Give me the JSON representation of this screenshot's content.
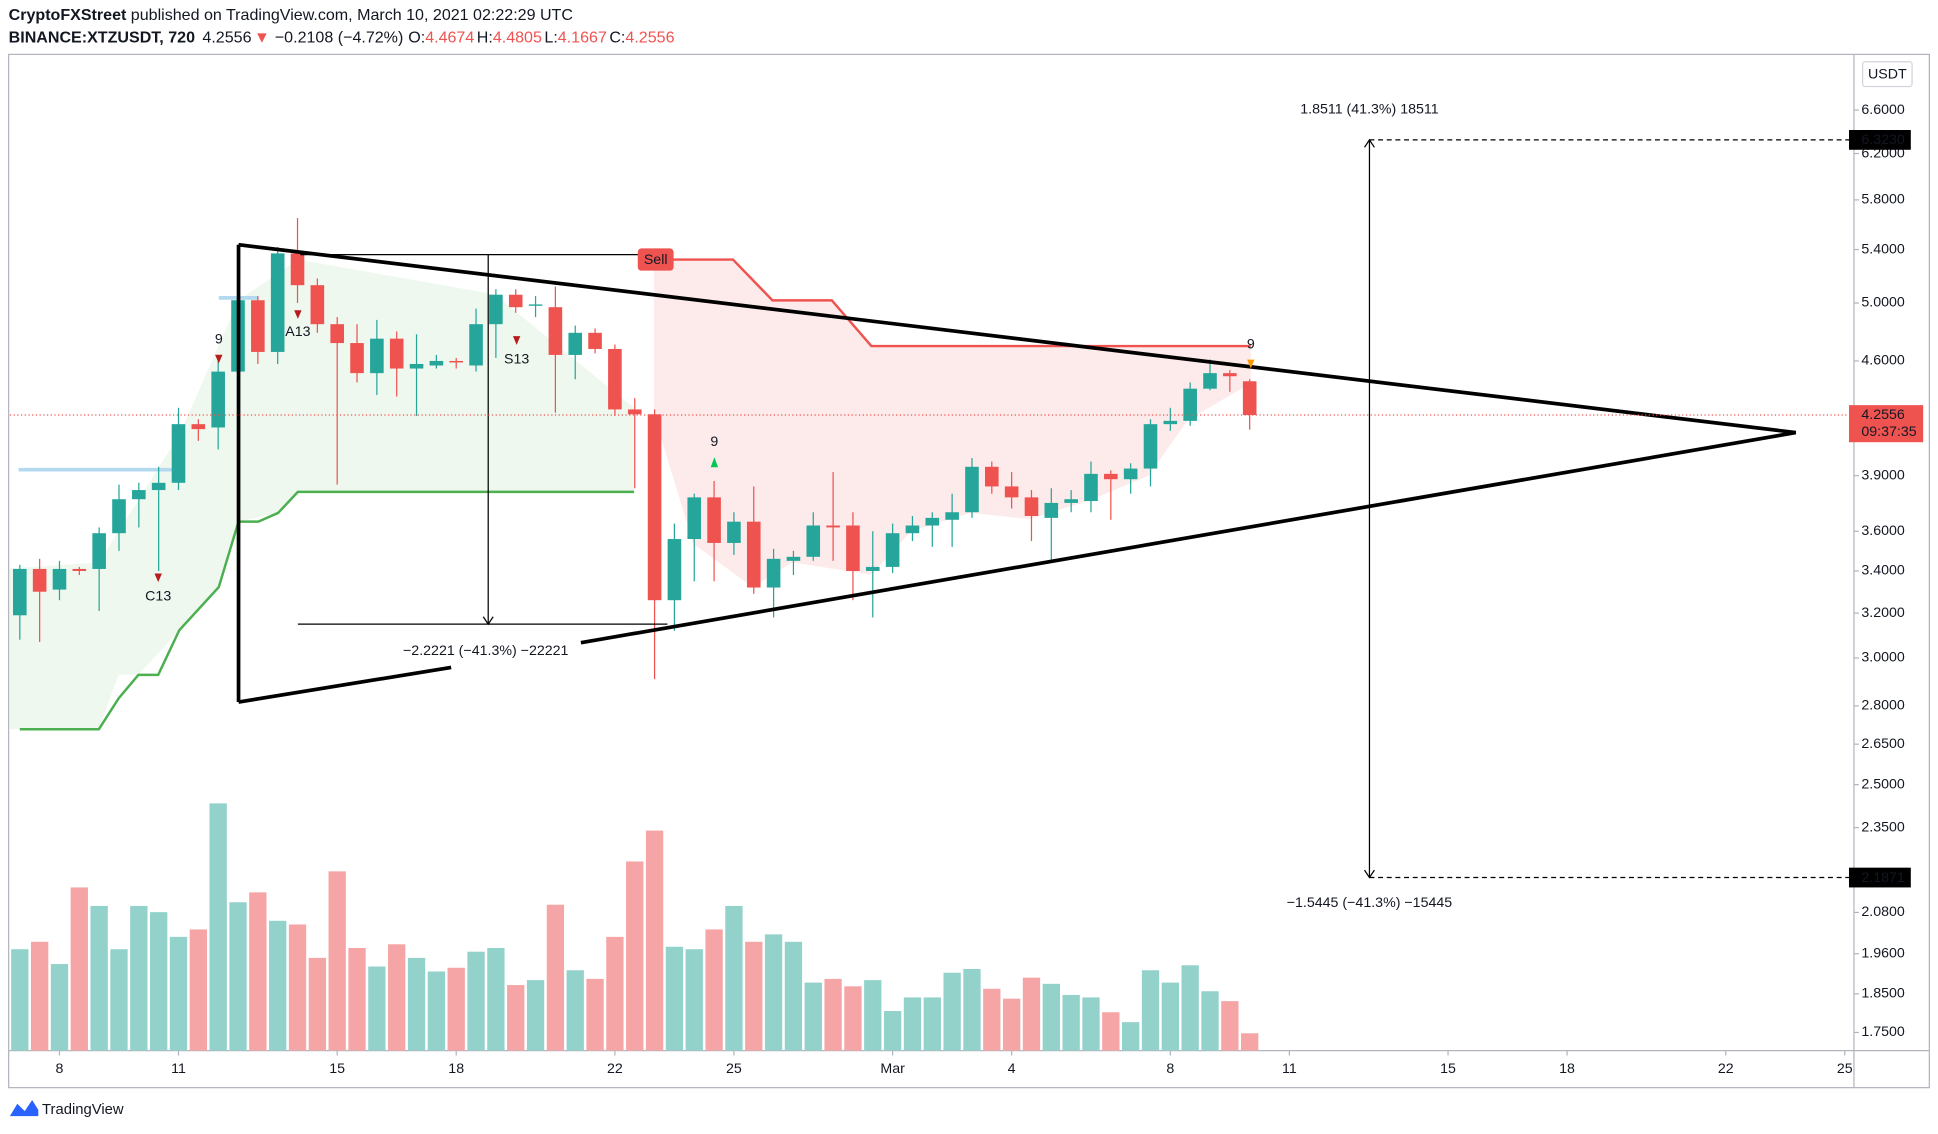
{
  "header": {
    "publisher": "CryptoFXStreet",
    "published": " published on TradingView.com, March 10, 2021 02:22:29 UTC",
    "symbol": "BINANCE:XTZUSDT, 720",
    "last": "4.2556",
    "change_arrow": "▼",
    "change": "−0.2108 (−4.72%)",
    "ohlc": [
      {
        "key": "O:",
        "val": "4.4674"
      },
      {
        "key": "H:",
        "val": "4.4805"
      },
      {
        "key": "L:",
        "val": "4.1667"
      },
      {
        "key": "C:",
        "val": "4.2556"
      }
    ]
  },
  "footer": "TradingView",
  "chart_data": {
    "type": "candlestick",
    "currency": "USDT",
    "log_scale": true,
    "xlim": [
      "2021-02-06T18:00",
      "2021-03-25T06:00"
    ],
    "ylim": [
      1.705,
      7.05
    ],
    "volume_ylim": [
      0,
      250
    ],
    "up_color": "#26a69a",
    "down_color": "#ef5350",
    "up_volume_color": "#93d1cb",
    "down_volume_color": "#f5a5a5",
    "xticks": [
      {
        "value": "2021-02-08T00:00",
        "label": "8"
      },
      {
        "value": "2021-02-11T00:00",
        "label": "11"
      },
      {
        "value": "2021-02-15T00:00",
        "label": "15"
      },
      {
        "value": "2021-02-18T00:00",
        "label": "18"
      },
      {
        "value": "2021-02-22T00:00",
        "label": "22"
      },
      {
        "value": "2021-02-25T00:00",
        "label": "25"
      },
      {
        "value": "2021-03-01T00:00",
        "label": "Mar"
      },
      {
        "value": "2021-03-04T00:00",
        "label": "4"
      },
      {
        "value": "2021-03-08T00:00",
        "label": "8"
      },
      {
        "value": "2021-03-11T00:00",
        "label": "11"
      },
      {
        "value": "2021-03-15T00:00",
        "label": "15"
      },
      {
        "value": "2021-03-18T00:00",
        "label": "18"
      },
      {
        "value": "2021-03-22T00:00",
        "label": "22"
      },
      {
        "value": "2021-03-25T00:00",
        "label": "25"
      }
    ],
    "yticks": [
      {
        "value": 6.6,
        "label": "6.6000"
      },
      {
        "value": 6.2,
        "label": "6.2000"
      },
      {
        "value": 5.8,
        "label": "5.8000"
      },
      {
        "value": 5.4,
        "label": "5.4000"
      },
      {
        "value": 5.0,
        "label": "5.0000"
      },
      {
        "value": 4.6,
        "label": "4.6000"
      },
      {
        "value": 3.9,
        "label": "3.9000"
      },
      {
        "value": 3.6,
        "label": "3.6000"
      },
      {
        "value": 3.4,
        "label": "3.4000"
      },
      {
        "value": 3.2,
        "label": "3.2000"
      },
      {
        "value": 3.0,
        "label": "3.0000"
      },
      {
        "value": 2.8,
        "label": "2.8000"
      },
      {
        "value": 2.65,
        "label": "2.6500"
      },
      {
        "value": 2.5,
        "label": "2.5000"
      },
      {
        "value": 2.35,
        "label": "2.3500"
      },
      {
        "value": 2.08,
        "label": "2.0800"
      },
      {
        "value": 1.96,
        "label": "1.9600"
      },
      {
        "value": 1.85,
        "label": "1.8500"
      },
      {
        "value": 1.75,
        "label": "1.7500"
      }
    ],
    "last_price": {
      "value": 4.2556,
      "label": "4.2556"
    },
    "countdown": "09:37:35",
    "levels": [
      {
        "value": 6.323,
        "label": "6.3230"
      },
      {
        "value": 2.1871,
        "label": "2.1871"
      }
    ],
    "measures": [
      "1.8511 (41.3%) 18511",
      "−1.5445 (−41.3%) −15445",
      "−2.2221 (−41.3%) −22221"
    ],
    "annotations": [
      "9",
      "A13",
      "C13",
      "S13",
      "9",
      "9",
      "Sell"
    ],
    "x": [
      "2021-02-07T00:00",
      "2021-02-07T12:00",
      "2021-02-08T00:00",
      "2021-02-08T12:00",
      "2021-02-09T00:00",
      "2021-02-09T12:00",
      "2021-02-10T00:00",
      "2021-02-10T12:00",
      "2021-02-11T00:00",
      "2021-02-11T12:00",
      "2021-02-12T00:00",
      "2021-02-12T12:00",
      "2021-02-13T00:00",
      "2021-02-13T12:00",
      "2021-02-14T00:00",
      "2021-02-14T12:00",
      "2021-02-15T00:00",
      "2021-02-15T12:00",
      "2021-02-16T00:00",
      "2021-02-16T12:00",
      "2021-02-17T00:00",
      "2021-02-17T12:00",
      "2021-02-18T00:00",
      "2021-02-18T12:00",
      "2021-02-19T00:00",
      "2021-02-19T12:00",
      "2021-02-20T00:00",
      "2021-02-20T12:00",
      "2021-02-21T00:00",
      "2021-02-21T12:00",
      "2021-02-22T00:00",
      "2021-02-22T12:00",
      "2021-02-23T00:00",
      "2021-02-23T12:00",
      "2021-02-24T00:00",
      "2021-02-24T12:00",
      "2021-02-25T00:00",
      "2021-02-25T12:00",
      "2021-02-26T00:00",
      "2021-02-26T12:00",
      "2021-02-27T00:00",
      "2021-02-27T12:00",
      "2021-02-28T00:00",
      "2021-02-28T12:00",
      "2021-03-01T00:00",
      "2021-03-01T12:00",
      "2021-03-02T00:00",
      "2021-03-02T12:00",
      "2021-03-03T00:00",
      "2021-03-03T12:00",
      "2021-03-04T00:00",
      "2021-03-04T12:00",
      "2021-03-05T00:00",
      "2021-03-05T12:00",
      "2021-03-06T00:00",
      "2021-03-06T12:00",
      "2021-03-07T00:00",
      "2021-03-07T12:00",
      "2021-03-08T00:00",
      "2021-03-08T12:00",
      "2021-03-09T00:00",
      "2021-03-09T12:00",
      "2021-03-10T00:00"
    ],
    "open": [
      3.19,
      3.41,
      3.31,
      3.41,
      3.41,
      3.59,
      3.77,
      3.82,
      3.86,
      4.2,
      4.18,
      4.53,
      5.02,
      4.66,
      5.37,
      5.13,
      4.85,
      4.72,
      4.52,
      4.75,
      4.55,
      4.57,
      4.6,
      4.57,
      4.85,
      5.06,
      4.98,
      4.97,
      4.64,
      4.79,
      4.68,
      4.29,
      4.26,
      3.26,
      3.56,
      3.78,
      3.54,
      3.65,
      3.32,
      3.45,
      3.47,
      3.63,
      3.63,
      3.4,
      3.42,
      3.59,
      3.63,
      3.66,
      3.7,
      3.95,
      3.84,
      3.78,
      3.67,
      3.75,
      3.76,
      3.91,
      3.88,
      3.94,
      4.2,
      4.22,
      4.42,
      4.52,
      4.4674
    ],
    "high": [
      3.43,
      3.46,
      3.45,
      3.42,
      3.62,
      3.85,
      3.86,
      3.95,
      4.3,
      4.23,
      4.63,
      5.07,
      5.05,
      5.42,
      5.65,
      5.18,
      4.9,
      4.85,
      4.88,
      4.8,
      4.78,
      4.64,
      4.62,
      4.96,
      5.1,
      5.1,
      5.05,
      5.12,
      4.84,
      4.82,
      4.71,
      4.36,
      4.29,
      3.64,
      3.8,
      3.87,
      3.7,
      3.84,
      3.51,
      3.5,
      3.7,
      3.92,
      3.7,
      3.6,
      3.64,
      3.68,
      3.7,
      3.8,
      4.0,
      3.98,
      3.92,
      3.82,
      3.83,
      3.82,
      3.98,
      3.93,
      3.97,
      4.23,
      4.3,
      4.46,
      4.61,
      4.54,
      4.4805
    ],
    "low": [
      3.08,
      3.07,
      3.26,
      3.38,
      3.21,
      3.5,
      3.62,
      3.4,
      3.82,
      4.1,
      4.05,
      4.46,
      4.58,
      4.58,
      5.0,
      4.79,
      3.85,
      4.46,
      4.38,
      4.37,
      4.25,
      4.55,
      4.55,
      4.53,
      4.62,
      4.93,
      4.9,
      4.27,
      4.48,
      4.65,
      4.25,
      3.83,
      2.91,
      3.12,
      3.35,
      3.35,
      3.48,
      3.29,
      3.18,
      3.38,
      3.45,
      3.45,
      3.26,
      3.18,
      3.39,
      3.55,
      3.52,
      3.52,
      3.67,
      3.8,
      3.72,
      3.55,
      3.44,
      3.7,
      3.7,
      3.66,
      3.8,
      3.84,
      4.16,
      4.19,
      4.41,
      4.4,
      4.1667
    ],
    "close": [
      3.41,
      3.3,
      3.41,
      3.4,
      3.59,
      3.77,
      3.82,
      3.86,
      4.2,
      4.17,
      4.53,
      5.02,
      4.66,
      5.37,
      5.13,
      4.85,
      4.72,
      4.52,
      4.75,
      4.55,
      4.58,
      4.6,
      4.59,
      4.85,
      5.06,
      4.97,
      4.99,
      4.64,
      4.79,
      4.68,
      4.29,
      4.26,
      3.26,
      3.56,
      3.78,
      3.54,
      3.65,
      3.32,
      3.46,
      3.47,
      3.63,
      3.62,
      3.4,
      3.42,
      3.59,
      3.63,
      3.67,
      3.7,
      3.95,
      3.84,
      3.78,
      3.68,
      3.75,
      3.77,
      3.91,
      3.88,
      3.94,
      4.2,
      4.22,
      4.42,
      4.52,
      4.5,
      4.2556
    ],
    "volume": [
      82,
      88,
      70,
      132,
      117,
      82,
      117,
      112,
      92,
      98,
      200,
      120,
      128,
      105,
      102,
      75,
      145,
      83,
      68,
      86,
      75,
      64,
      67,
      80,
      83,
      53,
      57,
      118,
      65,
      58,
      92,
      153,
      178,
      84,
      82,
      98,
      117,
      88,
      94,
      88,
      55,
      58,
      52,
      57,
      32,
      43,
      43,
      63,
      66,
      50,
      42,
      59,
      54,
      45,
      43,
      31,
      23,
      65,
      55,
      69,
      48,
      40,
      14
    ]
  }
}
